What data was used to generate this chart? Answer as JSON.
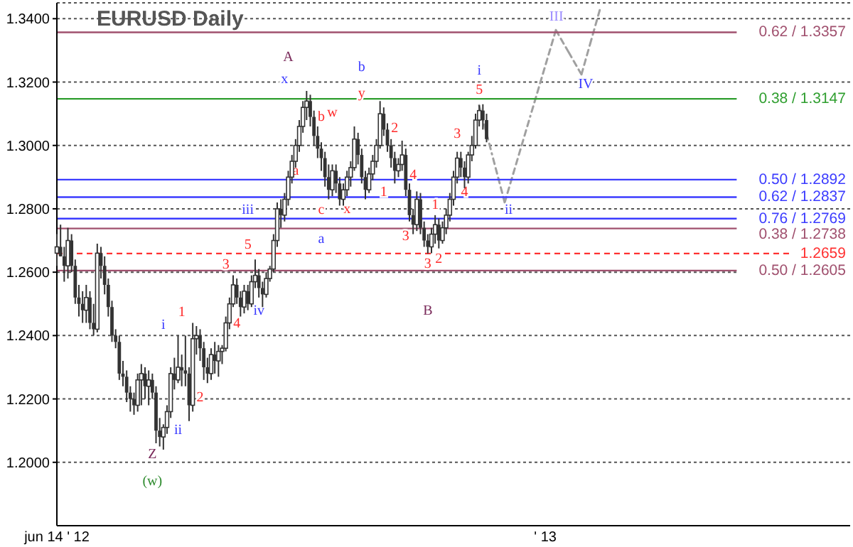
{
  "chart_data": {
    "type": "candlestick",
    "title": "EURUSD Daily",
    "color": "#333333",
    "grid": "y",
    "categories": [
      "jun 14 ' 12",
      null,
      null,
      null,
      null,
      null,
      null,
      null,
      null,
      null,
      null,
      null,
      null,
      null,
      null,
      null,
      null,
      null,
      null,
      null,
      null,
      null,
      null,
      null,
      null,
      null,
      null,
      null,
      null,
      null,
      null,
      null,
      null,
      null,
      null,
      null,
      null,
      null,
      null,
      null,
      null,
      null,
      null,
      null,
      null,
      null,
      null,
      null,
      null,
      null,
      null,
      null,
      null,
      null,
      null,
      null,
      null,
      null,
      null,
      null,
      null,
      null,
      null,
      null,
      null,
      null,
      null,
      null,
      null,
      null,
      null,
      null,
      null,
      null,
      null,
      null,
      null,
      null,
      null,
      null,
      null,
      null,
      null,
      null,
      null,
      null,
      null,
      null,
      null,
      null,
      null,
      null,
      null,
      null,
      null,
      null,
      null,
      null,
      null,
      null,
      null,
      null,
      null,
      null,
      null,
      null,
      null,
      null,
      null,
      null,
      null,
      null,
      null,
      null,
      null,
      null,
      null,
      null,
      null,
      null,
      null,
      null,
      null,
      null,
      null,
      null,
      null,
      null,
      null,
      null,
      null,
      null,
      null,
      "' 13",
      null,
      null,
      null,
      null,
      null,
      null,
      null,
      null,
      null,
      null,
      null,
      null,
      null,
      null,
      null,
      null,
      null,
      null,
      null,
      null,
      null,
      null,
      null,
      null,
      null,
      null,
      null,
      null,
      null,
      null,
      null,
      null,
      null,
      null,
      null,
      null,
      null,
      null,
      null,
      null,
      null,
      null,
      null,
      null,
      null,
      null,
      null,
      null,
      null,
      null,
      null,
      null,
      null,
      null,
      null,
      null,
      null,
      null,
      null,
      null,
      null,
      null,
      null,
      null,
      null,
      null,
      null,
      null,
      null,
      null,
      null,
      null,
      null,
      null,
      null,
      null,
      null,
      null,
      null,
      null,
      null,
      null,
      null
    ],
    "ylim": [
      1.18,
      1.345
    ],
    "yticks": [
      {
        "value": 1.2,
        "label": "1.2000"
      },
      {
        "value": 1.22,
        "label": "1.2200"
      },
      {
        "value": 1.24,
        "label": "1.2400"
      },
      {
        "value": 1.26,
        "label": "1.2600"
      },
      {
        "value": 1.28,
        "label": "1.2800"
      },
      {
        "value": 1.3,
        "label": "1.3000"
      },
      {
        "value": 1.32,
        "label": "1.3200"
      },
      {
        "value": 1.34,
        "label": "1.3400"
      }
    ],
    "ohlc": [
      [
        1.266,
        1.272,
        1.262,
        1.268
      ],
      [
        1.268,
        1.275,
        1.265,
        1.265
      ],
      [
        1.265,
        1.268,
        1.257,
        1.262
      ],
      [
        1.262,
        1.274,
        1.258,
        1.27
      ],
      [
        1.27,
        1.272,
        1.26,
        1.262
      ],
      [
        1.262,
        1.264,
        1.25,
        1.252
      ],
      [
        1.252,
        1.256,
        1.246,
        1.25
      ],
      [
        1.25,
        1.254,
        1.244,
        1.248
      ],
      [
        1.248,
        1.256,
        1.244,
        1.252
      ],
      [
        1.252,
        1.254,
        1.242,
        1.244
      ],
      [
        1.244,
        1.25,
        1.24,
        1.242
      ],
      [
        1.242,
        1.269,
        1.241,
        1.266
      ],
      [
        1.266,
        1.268,
        1.258,
        1.262
      ],
      [
        1.262,
        1.265,
        1.253,
        1.256
      ],
      [
        1.256,
        1.258,
        1.246,
        1.249
      ],
      [
        1.249,
        1.251,
        1.238,
        1.24
      ],
      [
        1.24,
        1.242,
        1.236,
        1.238
      ],
      [
        1.238,
        1.24,
        1.226,
        1.228
      ],
      [
        1.228,
        1.232,
        1.224,
        1.227
      ],
      [
        1.227,
        1.229,
        1.219,
        1.222
      ],
      [
        1.222,
        1.224,
        1.216,
        1.22
      ],
      [
        1.22,
        1.222,
        1.215,
        1.218
      ],
      [
        1.218,
        1.228,
        1.216,
        1.226
      ],
      [
        1.226,
        1.231,
        1.218,
        1.228
      ],
      [
        1.228,
        1.23,
        1.22,
        1.224
      ],
      [
        1.224,
        1.229,
        1.218,
        1.226
      ],
      [
        1.226,
        1.228,
        1.22,
        1.222
      ],
      [
        1.222,
        1.224,
        1.206,
        1.21
      ],
      [
        1.21,
        1.214,
        1.205,
        1.208
      ],
      [
        1.208,
        1.212,
        1.204,
        1.211
      ],
      [
        1.211,
        1.218,
        1.209,
        1.216
      ],
      [
        1.216,
        1.23,
        1.214,
        1.228
      ],
      [
        1.228,
        1.233,
        1.223,
        1.226
      ],
      [
        1.226,
        1.24,
        1.225,
        1.23
      ],
      [
        1.23,
        1.234,
        1.224,
        1.229
      ],
      [
        1.229,
        1.24,
        1.224,
        1.228
      ],
      [
        1.228,
        1.23,
        1.213,
        1.218
      ],
      [
        1.218,
        1.244,
        1.216,
        1.239
      ],
      [
        1.239,
        1.243,
        1.234,
        1.24
      ],
      [
        1.24,
        1.242,
        1.232,
        1.236
      ],
      [
        1.236,
        1.238,
        1.226,
        1.23
      ],
      [
        1.23,
        1.233,
        1.225,
        1.228
      ],
      [
        1.228,
        1.236,
        1.226,
        1.234
      ],
      [
        1.234,
        1.238,
        1.228,
        1.232
      ],
      [
        1.232,
        1.237,
        1.227,
        1.235
      ],
      [
        1.235,
        1.237,
        1.231,
        1.236
      ],
      [
        1.236,
        1.246,
        1.235,
        1.244
      ],
      [
        1.244,
        1.252,
        1.242,
        1.25
      ],
      [
        1.25,
        1.259,
        1.249,
        1.256
      ],
      [
        1.256,
        1.258,
        1.25,
        1.252
      ],
      [
        1.252,
        1.254,
        1.246,
        1.249
      ],
      [
        1.249,
        1.256,
        1.247,
        1.254
      ],
      [
        1.254,
        1.256,
        1.248,
        1.25
      ],
      [
        1.25,
        1.259,
        1.249,
        1.257
      ],
      [
        1.257,
        1.264,
        1.255,
        1.259
      ],
      [
        1.259,
        1.261,
        1.252,
        1.255
      ],
      [
        1.255,
        1.257,
        1.249,
        1.253
      ],
      [
        1.253,
        1.26,
        1.252,
        1.258
      ],
      [
        1.258,
        1.262,
        1.257,
        1.261
      ],
      [
        1.261,
        1.272,
        1.26,
        1.27
      ],
      [
        1.27,
        1.282,
        1.268,
        1.28
      ],
      [
        1.28,
        1.283,
        1.274,
        1.278
      ],
      [
        1.278,
        1.285,
        1.276,
        1.283
      ],
      [
        1.283,
        1.292,
        1.281,
        1.29
      ],
      [
        1.29,
        1.297,
        1.288,
        1.295
      ],
      [
        1.295,
        1.302,
        1.293,
        1.3
      ],
      [
        1.3,
        1.308,
        1.298,
        1.306
      ],
      [
        1.306,
        1.314,
        1.304,
        1.312
      ],
      [
        1.312,
        1.3172,
        1.308,
        1.314
      ],
      [
        1.314,
        1.316,
        1.306,
        1.309
      ],
      [
        1.309,
        1.311,
        1.3,
        1.303
      ],
      [
        1.303,
        1.306,
        1.296,
        1.299
      ],
      [
        1.299,
        1.301,
        1.292,
        1.296
      ],
      [
        1.296,
        1.298,
        1.287,
        1.29
      ],
      [
        1.29,
        1.294,
        1.283,
        1.286
      ],
      [
        1.286,
        1.294,
        1.284,
        1.292
      ],
      [
        1.292,
        1.294,
        1.285,
        1.288
      ],
      [
        1.288,
        1.29,
        1.281,
        1.283
      ],
      [
        1.283,
        1.288,
        1.281,
        1.286
      ],
      [
        1.286,
        1.292,
        1.284,
        1.29
      ],
      [
        1.29,
        1.295,
        1.287,
        1.293
      ],
      [
        1.293,
        1.306,
        1.292,
        1.302
      ],
      [
        1.302,
        1.304,
        1.294,
        1.297
      ],
      [
        1.297,
        1.299,
        1.288,
        1.29
      ],
      [
        1.29,
        1.292,
        1.283,
        1.286
      ],
      [
        1.286,
        1.293,
        1.285,
        1.291
      ],
      [
        1.291,
        1.297,
        1.289,
        1.295
      ],
      [
        1.295,
        1.302,
        1.293,
        1.3
      ],
      [
        1.3,
        1.314,
        1.299,
        1.31
      ],
      [
        1.31,
        1.312,
        1.303,
        1.305
      ],
      [
        1.305,
        1.307,
        1.298,
        1.3
      ],
      [
        1.3,
        1.302,
        1.293,
        1.296
      ],
      [
        1.296,
        1.298,
        1.288,
        1.292
      ],
      [
        1.292,
        1.296,
        1.29,
        1.294
      ],
      [
        1.294,
        1.3015,
        1.292,
        1.297
      ],
      [
        1.297,
        1.299,
        1.284,
        1.286
      ],
      [
        1.286,
        1.288,
        1.276,
        1.278
      ],
      [
        1.278,
        1.28,
        1.272,
        1.275
      ],
      [
        1.275,
        1.2855,
        1.273,
        1.283
      ],
      [
        1.283,
        1.285,
        1.272,
        1.274
      ],
      [
        1.274,
        1.276,
        1.268,
        1.27
      ],
      [
        1.27,
        1.272,
        1.2659,
        1.268
      ],
      [
        1.268,
        1.274,
        1.266,
        1.272
      ],
      [
        1.272,
        1.278,
        1.269,
        1.275
      ],
      [
        1.275,
        1.277,
        1.2675,
        1.27
      ],
      [
        1.27,
        1.276,
        1.269,
        1.274
      ],
      [
        1.274,
        1.28,
        1.272,
        1.278
      ],
      [
        1.278,
        1.285,
        1.276,
        1.283
      ],
      [
        1.283,
        1.292,
        1.281,
        1.29
      ],
      [
        1.29,
        1.298,
        1.288,
        1.296
      ],
      [
        1.296,
        1.298,
        1.29,
        1.293
      ],
      [
        1.293,
        1.295,
        1.2865,
        1.29
      ],
      [
        1.29,
        1.298,
        1.288,
        1.297
      ],
      [
        1.297,
        1.303,
        1.295,
        1.3
      ],
      [
        1.3,
        1.31,
        1.299,
        1.308
      ],
      [
        1.308,
        1.3127,
        1.306,
        1.311
      ],
      [
        1.311,
        1.313,
        1.305,
        1.308
      ],
      [
        1.308,
        1.31,
        1.301,
        1.302
      ],
      null,
      null,
      null,
      null,
      null,
      null,
      null,
      null,
      null,
      null,
      null,
      null,
      null,
      null,
      null,
      null,
      null,
      null,
      null,
      null,
      null,
      null,
      null,
      null,
      null,
      null,
      null,
      null,
      null,
      null,
      null,
      null,
      null,
      null,
      null,
      null,
      null,
      null,
      null,
      null,
      null,
      null,
      null,
      null,
      null,
      null,
      null,
      null,
      null,
      null,
      null,
      null,
      null,
      null,
      null,
      null,
      null,
      null,
      null,
      null,
      null,
      null,
      null,
      null,
      null,
      null,
      null,
      null,
      null,
      null,
      null,
      null,
      null,
      null,
      null,
      null,
      null,
      null,
      null,
      null,
      null,
      null,
      null,
      null,
      null,
      null,
      null,
      null,
      null,
      null,
      null,
      null,
      null,
      null,
      null,
      null,
      null,
      null,
      null
    ],
    "series": [
      {
        "type": "line",
        "color": "#a0a0a0",
        "line_style": "dashed",
        "marker": "none",
        "values": [
          null,
          null,
          null,
          null,
          null,
          null,
          null,
          null,
          null,
          null,
          null,
          null,
          null,
          null,
          null,
          null,
          null,
          null,
          null,
          null,
          null,
          null,
          null,
          null,
          null,
          null,
          null,
          null,
          null,
          null,
          null,
          null,
          null,
          null,
          null,
          null,
          null,
          null,
          null,
          null,
          null,
          null,
          null,
          null,
          null,
          null,
          null,
          null,
          null,
          null,
          null,
          null,
          null,
          null,
          null,
          null,
          null,
          null,
          null,
          null,
          null,
          null,
          null,
          null,
          null,
          null,
          null,
          null,
          null,
          null,
          null,
          null,
          null,
          null,
          null,
          null,
          null,
          null,
          null,
          null,
          null,
          null,
          null,
          null,
          null,
          null,
          null,
          null,
          null,
          null,
          null,
          null,
          null,
          null,
          null,
          null,
          null,
          null,
          null,
          null,
          null,
          null,
          null,
          null,
          null,
          null,
          null,
          null,
          null,
          null,
          null,
          null,
          null,
          null,
          null,
          1.3127,
          null,
          null,
          null,
          null,
          null,
          null,
          1.282,
          null,
          null,
          null,
          null,
          null,
          null,
          null,
          null,
          null,
          null,
          null,
          null,
          null,
          1.3364,
          null,
          null,
          null,
          null,
          null,
          null,
          1.3224,
          null,
          null,
          null,
          null,
          1.3427,
          null,
          null,
          null,
          null,
          null,
          null,
          null,
          null,
          null,
          null,
          null,
          null,
          null,
          null,
          null,
          null,
          null,
          null,
          null,
          null,
          null,
          null,
          null,
          null,
          null,
          null,
          null,
          null,
          null,
          null,
          null,
          null,
          null,
          null,
          null,
          null,
          null,
          null,
          null,
          null,
          null,
          null,
          null,
          null,
          null,
          null,
          null,
          null,
          null,
          null,
          null,
          null,
          null,
          null,
          null,
          null,
          null,
          null,
          null,
          null,
          null,
          null,
          null,
          null,
          null,
          null,
          null,
          null
        ]
      }
    ],
    "annotations": [
      "1",
      "2",
      "3",
      "4",
      "5",
      "b",
      "a",
      "c",
      "w",
      "x",
      "y",
      "1",
      "2",
      "3",
      "4",
      "1",
      "2",
      "3",
      "3",
      "4",
      "5",
      "x",
      "b",
      "i",
      "a",
      "iii",
      "iv",
      "i",
      "ii",
      "ii",
      "IV",
      "A",
      "B",
      "Z",
      "(w)",
      "III"
    ],
    "ref_lines": [
      {
        "axis": "y",
        "value": 1.3357,
        "label": "0.62 / 1.3357",
        "color": "#a0506e"
      },
      {
        "axis": "y",
        "value": 1.3147,
        "label": "0.38 / 1.3147",
        "color": "#2e9e2e"
      },
      {
        "axis": "y",
        "value": 1.2892,
        "label": "0.50 / 1.2892",
        "color": "#3b3bff"
      },
      {
        "axis": "y",
        "value": 1.2837,
        "label": "0.62 / 1.2837",
        "color": "#3b3bff"
      },
      {
        "axis": "y",
        "value": 1.2769,
        "label": "0.76 / 1.2769",
        "color": "#3b3bff"
      },
      {
        "axis": "y",
        "value": 1.2738,
        "label": "0.38 / 1.2738",
        "color": "#a0506e"
      },
      {
        "axis": "y",
        "value": 1.2659,
        "label": "1.2659",
        "color": "#ff3030",
        "line_style": "dashed"
      },
      {
        "axis": "y",
        "value": 1.2605,
        "label": "0.50 / 1.2605",
        "color": "#a0506e"
      }
    ]
  }
}
